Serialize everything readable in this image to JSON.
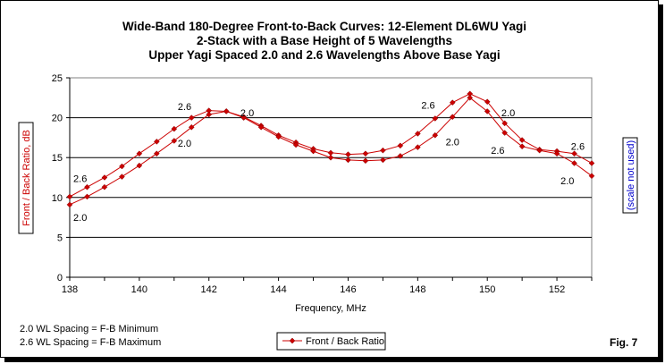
{
  "chart_data": {
    "type": "line",
    "title_lines": [
      "Wide-Band 180-Degree Front-to-Back Curves: 12-Element DL6WU Yagi",
      "2-Stack with a Base Height of 5 Wavelengths",
      "Upper Yagi Spaced 2.0 and 2.6 Wavelengths Above Base Yagi"
    ],
    "xlabel": "Frequency, MHz",
    "ylabel": "Front / Back Ratio,  dB",
    "ylabel_right": "(scale not used)",
    "xlim": [
      138,
      153
    ],
    "ylim": [
      0,
      25
    ],
    "xticks": [
      138,
      140,
      142,
      144,
      146,
      148,
      150,
      152
    ],
    "yticks": [
      0,
      5,
      10,
      15,
      20,
      25
    ],
    "grid": "horizontal",
    "series_color": "#cc0000",
    "x": [
      138,
      138.5,
      139,
      139.5,
      140,
      140.5,
      141,
      141.5,
      142,
      142.5,
      143,
      143.5,
      144,
      144.5,
      145,
      145.5,
      146,
      146.5,
      147,
      147.5,
      148,
      148.5,
      149,
      149.5,
      150,
      150.5,
      151,
      151.5,
      152,
      152.5,
      153
    ],
    "series": [
      {
        "label": "2.6",
        "values": [
          10.1,
          11.3,
          12.5,
          13.9,
          15.5,
          17.0,
          18.6,
          20.0,
          20.9,
          20.8,
          20.1,
          19.0,
          17.8,
          16.9,
          16.1,
          15.6,
          15.4,
          15.5,
          15.9,
          16.5,
          18.0,
          19.9,
          21.9,
          23.0,
          22.0,
          19.3,
          17.2,
          16.0,
          15.8,
          15.5,
          14.3
        ]
      },
      {
        "label": "2.0",
        "values": [
          9.1,
          10.1,
          11.3,
          12.6,
          14.0,
          15.5,
          17.1,
          18.8,
          20.4,
          20.8,
          20.0,
          18.8,
          17.6,
          16.6,
          15.8,
          15.0,
          14.7,
          14.6,
          14.7,
          15.2,
          16.3,
          17.8,
          20.1,
          22.5,
          20.8,
          18.1,
          16.4,
          15.9,
          15.5,
          14.3,
          12.7
        ]
      }
    ],
    "annotations": [
      {
        "text": "2.6",
        "x": 138.3,
        "y": 12.4
      },
      {
        "text": "2.0",
        "x": 138.3,
        "y": 7.5
      },
      {
        "text": "2.6",
        "x": 141.3,
        "y": 21.4
      },
      {
        "text": "2.0",
        "x": 141.3,
        "y": 16.8
      },
      {
        "text": "2.0",
        "x": 143.1,
        "y": 20.6
      },
      {
        "text": "2.6",
        "x": 148.3,
        "y": 21.6
      },
      {
        "text": "2.0",
        "x": 149.0,
        "y": 17.0
      },
      {
        "text": "2.0",
        "x": 150.6,
        "y": 20.6
      },
      {
        "text": "2.6",
        "x": 150.3,
        "y": 15.9
      },
      {
        "text": "2.6",
        "x": 152.6,
        "y": 16.4
      },
      {
        "text": "2.0",
        "x": 152.3,
        "y": 12.1
      }
    ],
    "legend": {
      "entry": "Front / Back Ratio",
      "placement": "bottom"
    }
  },
  "notes": [
    "2.0 WL Spacing = F-B Minimum",
    "2.6 WL Spacing = F-B Maximum"
  ],
  "figure_label": "Fig. 7"
}
